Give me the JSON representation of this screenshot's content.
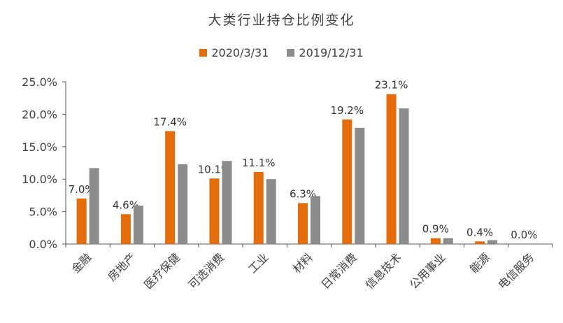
{
  "chart_data": {
    "type": "bar",
    "title": "大类行业持仓比例变化",
    "categories": [
      "金融",
      "房地产",
      "医疗保健",
      "可选消费",
      "工业",
      "材料",
      "日常消费",
      "信息技术",
      "公用事业",
      "能源",
      "电信服务"
    ],
    "series": [
      {
        "name": "2020/3/31",
        "color": "#e46c0a",
        "values": [
          7.0,
          4.6,
          17.4,
          10.1,
          11.1,
          6.3,
          19.2,
          23.1,
          0.9,
          0.4,
          0.0
        ],
        "data_labels": [
          "7.0%",
          "4.6%",
          "17.4%",
          "10.1%",
          "11.1%",
          "6.3%",
          "19.2%",
          "23.1%",
          "0.9%",
          "0.4%",
          "0.0%"
        ]
      },
      {
        "name": "2019/12/31",
        "color": "#8c8c8c",
        "values": [
          11.7,
          5.9,
          12.3,
          12.8,
          10.0,
          7.4,
          17.9,
          20.9,
          0.9,
          0.6,
          0.0
        ]
      }
    ],
    "y_ticks": [
      "0.0%",
      "5.0%",
      "10.0%",
      "15.0%",
      "20.0%",
      "25.0%"
    ],
    "ylim": [
      0,
      25
    ],
    "legend_position": "top-center",
    "grid": false
  }
}
